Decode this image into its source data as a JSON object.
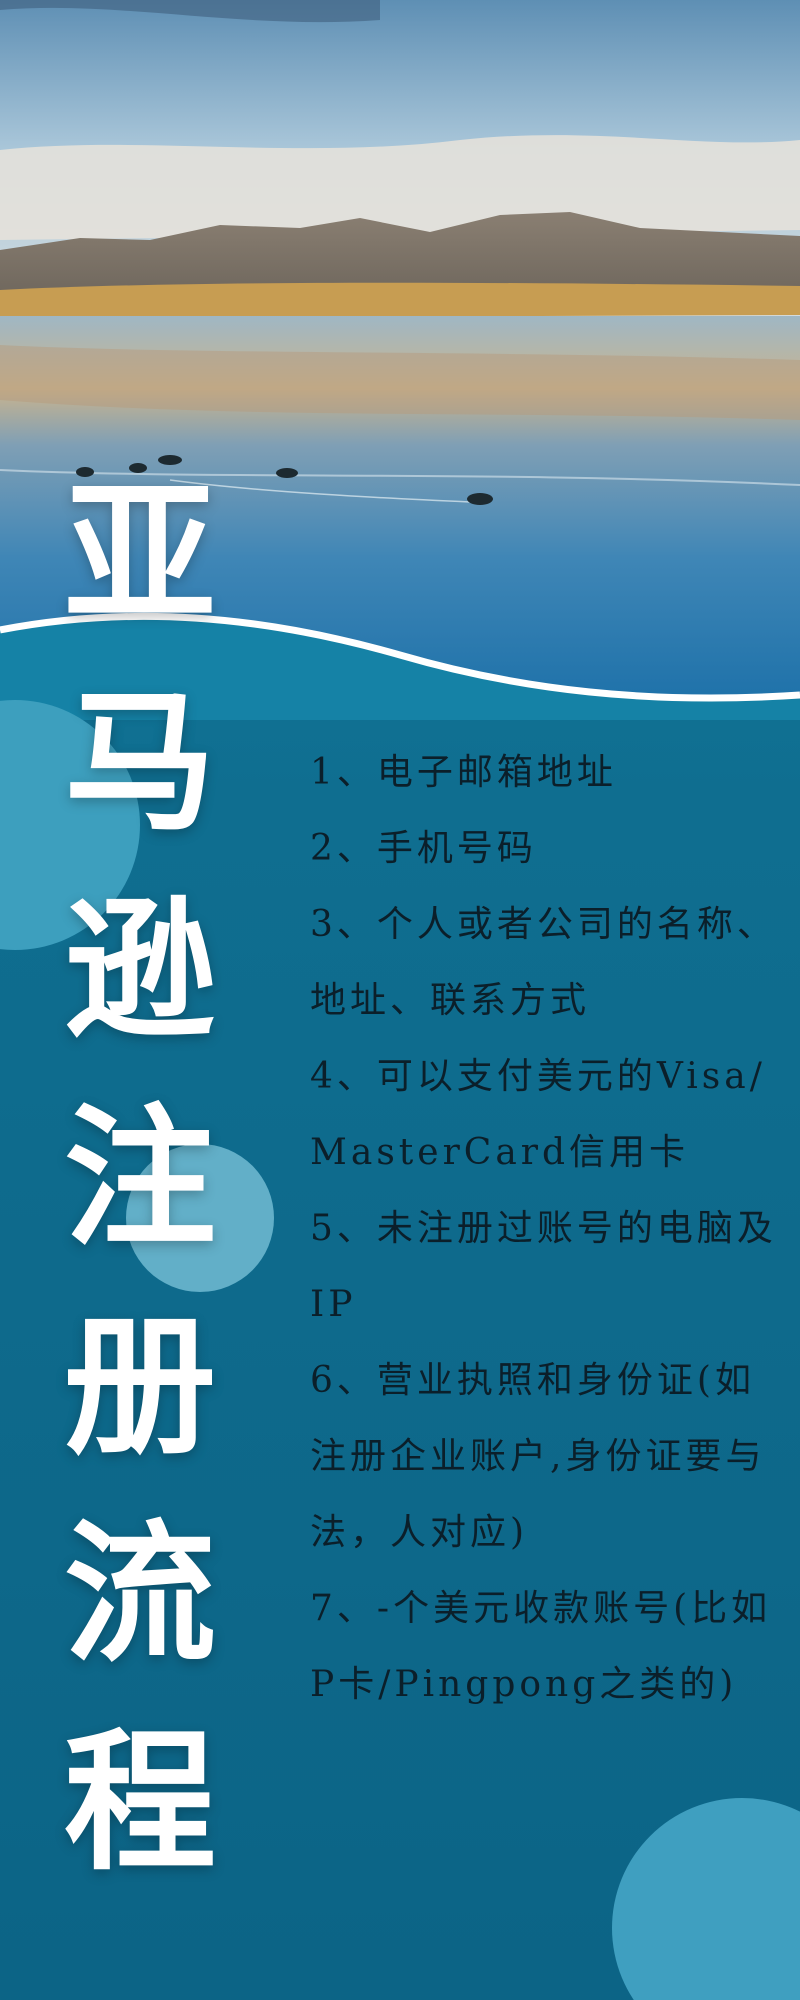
{
  "title_chars": [
    "亚",
    "马",
    "逊",
    "注",
    "册",
    "流",
    "程"
  ],
  "requirements": [
    "1、电子邮箱地址",
    "2、手机号码",
    "3、个人或者公司的名称、地址、联系方式",
    "4、可以支付美元的Visa/MasterCard信用卡",
    "5、未注册过账号的电脑及IP",
    "6、营业执照和身份证(如注册企业账户,身份证要与法，人对应)",
    "7、-个美元收款账号(比如P卡/Pingpong之类的)"
  ],
  "colors": {
    "background": "#0f6e90",
    "title": "#ffffff",
    "body_text": "#0b1f2a",
    "wave": "#ffffff",
    "circle_light": "#62afc8",
    "circle_mid": "#3f9fc0"
  }
}
